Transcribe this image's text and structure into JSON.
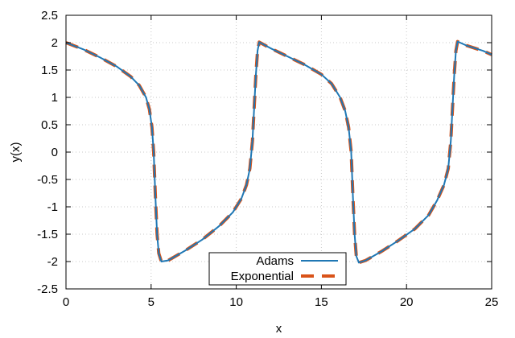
{
  "chart_data": {
    "type": "line",
    "title": "",
    "xlabel": "x",
    "ylabel": "y(x)",
    "xlim": [
      0,
      25
    ],
    "ylim": [
      -2.5,
      2.5
    ],
    "xticks": [
      0,
      5,
      10,
      15,
      20,
      25
    ],
    "xtick_labels": [
      "0",
      "5",
      "10",
      "15",
      "20",
      "25"
    ],
    "yticks": [
      -2.5,
      -2,
      -1.5,
      -1,
      -0.5,
      0,
      0.5,
      1,
      1.5,
      2,
      2.5
    ],
    "ytick_labels": [
      "-2.5",
      "-2",
      "-1.5",
      "-1",
      "-0.5",
      "0",
      "0.5",
      "1",
      "1.5",
      "2",
      "2.5"
    ],
    "grid": true,
    "legend": {
      "placement": "bottom-center",
      "entries": [
        "Adams",
        "Exponential"
      ]
    },
    "series": [
      {
        "name": "Adams",
        "color": "#1f77b4",
        "style": "solid",
        "x": [
          0,
          1,
          2,
          3,
          3.8,
          4.3,
          4.7,
          4.9,
          5.05,
          5.15,
          5.25,
          5.35,
          5.45,
          5.6,
          6.0,
          7.0,
          8.0,
          9.0,
          9.8,
          10.3,
          10.6,
          10.8,
          10.95,
          11.05,
          11.15,
          11.25,
          11.35,
          12,
          13,
          14,
          15,
          15.6,
          16.1,
          16.4,
          16.6,
          16.75,
          16.85,
          16.95,
          17.05,
          17.2,
          17.6,
          18.5,
          19.5,
          20.5,
          21.3,
          21.8,
          22.2,
          22.45,
          22.6,
          22.7,
          22.8,
          22.9,
          23.0,
          23.5,
          24.5,
          25
        ],
        "y": [
          2.0,
          1.88,
          1.73,
          1.56,
          1.38,
          1.22,
          1.0,
          0.78,
          0.45,
          0.0,
          -0.8,
          -1.5,
          -1.85,
          -2.0,
          -1.98,
          -1.8,
          -1.6,
          -1.35,
          -1.1,
          -0.85,
          -0.6,
          -0.3,
          0.2,
          0.8,
          1.4,
          1.85,
          2.01,
          1.9,
          1.75,
          1.6,
          1.42,
          1.25,
          1.0,
          0.75,
          0.45,
          0.0,
          -0.8,
          -1.5,
          -1.9,
          -2.02,
          -1.98,
          -1.82,
          -1.62,
          -1.4,
          -1.15,
          -0.88,
          -0.6,
          -0.3,
          0.2,
          0.8,
          1.4,
          1.85,
          2.02,
          1.95,
          1.85,
          1.78
        ]
      },
      {
        "name": "Exponential",
        "color": "#d95319",
        "style": "dashed",
        "x": [
          0,
          1,
          2,
          3,
          3.8,
          4.3,
          4.7,
          4.9,
          5.05,
          5.15,
          5.25,
          5.35,
          5.45,
          5.6,
          6.0,
          7.0,
          8.0,
          9.0,
          9.8,
          10.3,
          10.6,
          10.8,
          10.95,
          11.05,
          11.15,
          11.25,
          11.35,
          12,
          13,
          14,
          15,
          15.6,
          16.1,
          16.4,
          16.6,
          16.75,
          16.85,
          16.95,
          17.05,
          17.2,
          17.6,
          18.5,
          19.5,
          20.5,
          21.3,
          21.8,
          22.2,
          22.45,
          22.6,
          22.7,
          22.8,
          22.9,
          23.0,
          23.5,
          24.5,
          25
        ],
        "y": [
          2.0,
          1.88,
          1.73,
          1.56,
          1.38,
          1.22,
          1.0,
          0.78,
          0.45,
          0.0,
          -0.8,
          -1.5,
          -1.85,
          -2.0,
          -1.98,
          -1.8,
          -1.6,
          -1.35,
          -1.1,
          -0.85,
          -0.6,
          -0.3,
          0.2,
          0.8,
          1.4,
          1.85,
          2.01,
          1.9,
          1.75,
          1.6,
          1.42,
          1.25,
          1.0,
          0.75,
          0.45,
          0.0,
          -0.8,
          -1.5,
          -1.9,
          -2.02,
          -1.98,
          -1.82,
          -1.62,
          -1.4,
          -1.15,
          -0.88,
          -0.6,
          -0.3,
          0.2,
          0.8,
          1.4,
          1.85,
          2.02,
          1.95,
          1.85,
          1.78
        ]
      }
    ]
  }
}
